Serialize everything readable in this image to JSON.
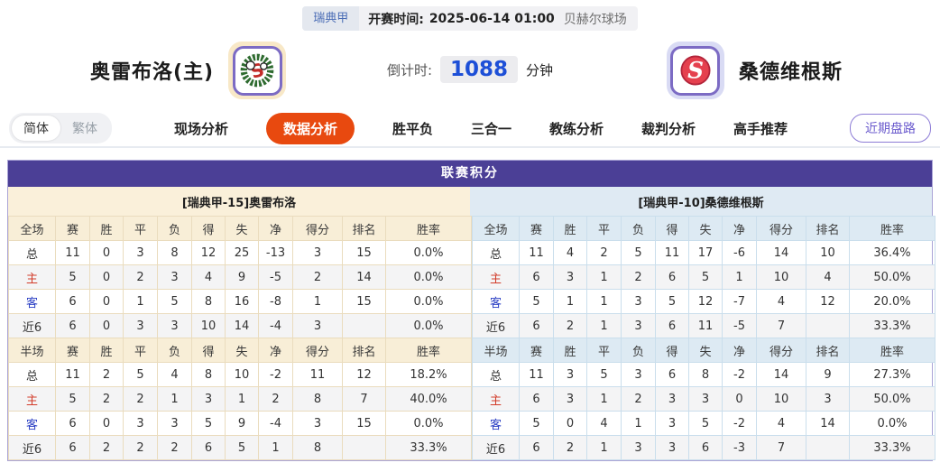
{
  "top_bar": {
    "league": "瑞典甲",
    "kickoff_label": "开赛时间:",
    "kickoff_time": "2025-06-14 01:00",
    "venue": "贝赫尔球场"
  },
  "header": {
    "home_team": "奥雷布洛(主)",
    "away_team": "桑德维根斯",
    "countdown_label": "倒计时:",
    "countdown_value": "1088",
    "countdown_unit": "分钟",
    "home_logo_icon": "wreath-osk-crest",
    "away_logo_icon": "red-circle-s-crest"
  },
  "nav": {
    "simplified": "简体",
    "traditional": "繁体",
    "tabs": [
      {
        "label": "现场分析",
        "active": false
      },
      {
        "label": "数据分析",
        "active": true
      },
      {
        "label": "胜平负",
        "active": false
      },
      {
        "label": "三合一",
        "active": false
      },
      {
        "label": "教练分析",
        "active": false
      },
      {
        "label": "裁判分析",
        "active": false
      },
      {
        "label": "高手推荐",
        "active": false
      }
    ],
    "recent_trends_button": "近期盘路"
  },
  "table": {
    "title": "联赛积分",
    "home": {
      "subtitle": "[瑞典甲-15]奥雷布洛",
      "sections": [
        {
          "header": [
            "全场",
            "赛",
            "胜",
            "平",
            "负",
            "得",
            "失",
            "净",
            "得分",
            "排名",
            "胜率"
          ],
          "rows": [
            {
              "label": "总",
              "cells": [
                "11",
                "0",
                "3",
                "8",
                "12",
                "25",
                "-13",
                "3",
                "15",
                "0.0%"
              ]
            },
            {
              "label": "主",
              "cells": [
                "5",
                "0",
                "2",
                "3",
                "4",
                "9",
                "-5",
                "2",
                "14",
                "0.0%"
              ]
            },
            {
              "label": "客",
              "cells": [
                "6",
                "0",
                "1",
                "5",
                "8",
                "16",
                "-8",
                "1",
                "15",
                "0.0%"
              ]
            },
            {
              "label": "近6",
              "cells": [
                "6",
                "0",
                "3",
                "3",
                "10",
                "14",
                "-4",
                "3",
                "",
                "0.0%"
              ]
            }
          ]
        },
        {
          "header": [
            "半场",
            "赛",
            "胜",
            "平",
            "负",
            "得",
            "失",
            "净",
            "得分",
            "排名",
            "胜率"
          ],
          "rows": [
            {
              "label": "总",
              "cells": [
                "11",
                "2",
                "5",
                "4",
                "8",
                "10",
                "-2",
                "11",
                "12",
                "18.2%"
              ]
            },
            {
              "label": "主",
              "cells": [
                "5",
                "2",
                "2",
                "1",
                "3",
                "1",
                "2",
                "8",
                "7",
                "40.0%"
              ]
            },
            {
              "label": "客",
              "cells": [
                "6",
                "0",
                "3",
                "3",
                "5",
                "9",
                "-4",
                "3",
                "15",
                "0.0%"
              ]
            },
            {
              "label": "近6",
              "cells": [
                "6",
                "2",
                "2",
                "2",
                "6",
                "5",
                "1",
                "8",
                "",
                "33.3%"
              ]
            }
          ]
        }
      ]
    },
    "away": {
      "subtitle": "[瑞典甲-10]桑德维根斯",
      "sections": [
        {
          "header": [
            "全场",
            "赛",
            "胜",
            "平",
            "负",
            "得",
            "失",
            "净",
            "得分",
            "排名",
            "胜率"
          ],
          "rows": [
            {
              "label": "总",
              "cells": [
                "11",
                "4",
                "2",
                "5",
                "11",
                "17",
                "-6",
                "14",
                "10",
                "36.4%"
              ]
            },
            {
              "label": "主",
              "cells": [
                "6",
                "3",
                "1",
                "2",
                "6",
                "5",
                "1",
                "10",
                "4",
                "50.0%"
              ]
            },
            {
              "label": "客",
              "cells": [
                "5",
                "1",
                "1",
                "3",
                "5",
                "12",
                "-7",
                "4",
                "12",
                "20.0%"
              ]
            },
            {
              "label": "近6",
              "cells": [
                "6",
                "2",
                "1",
                "3",
                "6",
                "11",
                "-5",
                "7",
                "",
                "33.3%"
              ]
            }
          ]
        },
        {
          "header": [
            "半场",
            "赛",
            "胜",
            "平",
            "负",
            "得",
            "失",
            "净",
            "得分",
            "排名",
            "胜率"
          ],
          "rows": [
            {
              "label": "总",
              "cells": [
                "11",
                "3",
                "5",
                "3",
                "6",
                "8",
                "-2",
                "14",
                "9",
                "27.3%"
              ]
            },
            {
              "label": "主",
              "cells": [
                "6",
                "3",
                "1",
                "2",
                "3",
                "3",
                "0",
                "10",
                "3",
                "50.0%"
              ]
            },
            {
              "label": "客",
              "cells": [
                "5",
                "0",
                "4",
                "1",
                "3",
                "5",
                "-2",
                "4",
                "14",
                "0.0%"
              ]
            },
            {
              "label": "近6",
              "cells": [
                "6",
                "2",
                "1",
                "3",
                "3",
                "6",
                "-3",
                "7",
                "",
                "33.3%"
              ]
            }
          ]
        }
      ]
    }
  },
  "colors": {
    "title_bar": "#4b3f96",
    "active_tab": "#e8490f",
    "countdown_value": "#1d4fd7",
    "league_text": "#4a6cb5",
    "home_sub_bg": "#faf0da",
    "away_sub_bg": "#dfeaf3",
    "home_header_bg": "#f8eed7",
    "away_header_bg": "#ddeaf3",
    "home_row_label": "#d23c2a",
    "away_row_label": "#2b3fc4"
  }
}
